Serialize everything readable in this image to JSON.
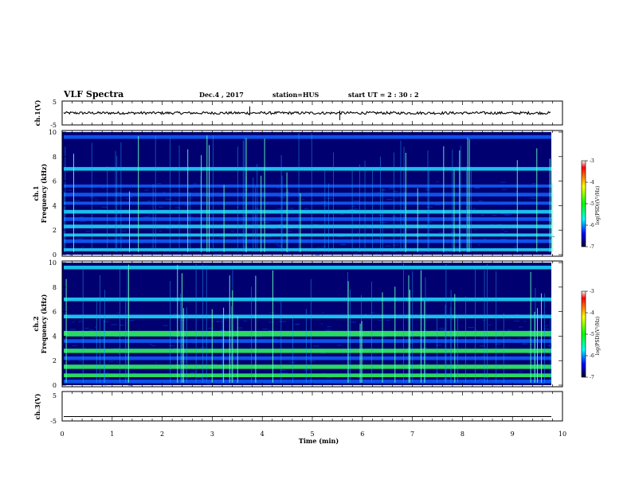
{
  "header": {
    "title": "VLF Spectra",
    "date": "Dec.4  , 2017",
    "station": "station=HUS",
    "start_ut": "start  UT  =   2  : 30 : 2"
  },
  "colors": {
    "spectrogram_bg": "#000070",
    "band_blue": "#1060ff",
    "band_cyan": "#20e0ff",
    "band_green": "#30ff60",
    "colorbar": [
      "#ff0000",
      "#ffff00",
      "#00ff00",
      "#00ffff",
      "#0000ff",
      "#000040"
    ]
  },
  "chart_data": [
    {
      "type": "line",
      "panel": "ch.1",
      "ylabel": "ch.1(V)",
      "ylim": [
        -5,
        5
      ],
      "y_ticks": [
        "5",
        "-5"
      ],
      "baseline_value": 0,
      "noise_amplitude": 0.4
    },
    {
      "type": "heatmap",
      "panel": "ch.1 spectrogram",
      "ylabel": "ch.1\nFrequency (kHz)",
      "ylabel_lines": [
        "ch.1",
        "Frequency  (kHz)"
      ],
      "ylim": [
        0,
        10
      ],
      "y_ticks": [
        "0",
        "2",
        "4",
        "6",
        "8",
        "10"
      ],
      "xlim": [
        0,
        10
      ],
      "bands_khz": [
        {
          "center": 0.4,
          "width": 0.25,
          "level": "cyan"
        },
        {
          "center": 1.1,
          "width": 0.3,
          "level": "blue"
        },
        {
          "center": 1.6,
          "width": 0.25,
          "level": "cyan"
        },
        {
          "center": 2.3,
          "width": 0.3,
          "level": "cyan"
        },
        {
          "center": 2.9,
          "width": 0.3,
          "level": "blue"
        },
        {
          "center": 3.5,
          "width": 0.3,
          "level": "cyan"
        },
        {
          "center": 4.2,
          "width": 0.25,
          "level": "blue"
        },
        {
          "center": 4.9,
          "width": 0.3,
          "level": "blue"
        },
        {
          "center": 5.6,
          "width": 0.25,
          "level": "blue"
        },
        {
          "center": 7.0,
          "width": 0.3,
          "level": "cyan"
        },
        {
          "center": 9.6,
          "width": 0.3,
          "level": "blue"
        }
      ],
      "colorbar": {
        "label": "log(PSD)(V²/Hz)",
        "ticks": [
          "-3",
          "-4",
          "-5",
          "-6",
          "-7"
        ],
        "range": [
          -7,
          -3
        ]
      }
    },
    {
      "type": "heatmap",
      "panel": "ch.2 spectrogram",
      "ylabel_lines": [
        "ch.2",
        "Frequency  (kHz)"
      ],
      "ylim": [
        0,
        10
      ],
      "y_ticks": [
        "0",
        "2",
        "4",
        "6",
        "8",
        "10"
      ],
      "xlim": [
        0,
        10
      ],
      "bands_khz": [
        {
          "center": 0.3,
          "width": 0.3,
          "level": "blue"
        },
        {
          "center": 0.8,
          "width": 0.3,
          "level": "green"
        },
        {
          "center": 1.5,
          "width": 0.35,
          "level": "green"
        },
        {
          "center": 2.2,
          "width": 0.3,
          "level": "blue"
        },
        {
          "center": 2.8,
          "width": 0.35,
          "level": "green"
        },
        {
          "center": 3.6,
          "width": 0.3,
          "level": "blue"
        },
        {
          "center": 4.2,
          "width": 0.45,
          "level": "green"
        },
        {
          "center": 5.6,
          "width": 0.3,
          "level": "cyan"
        },
        {
          "center": 7.0,
          "width": 0.3,
          "level": "cyan"
        },
        {
          "center": 9.6,
          "width": 0.3,
          "level": "cyan"
        }
      ],
      "colorbar": {
        "label": "log(PSD)(V²/Hz)",
        "ticks": [
          "-3",
          "-4",
          "-5",
          "-6",
          "-7"
        ],
        "range": [
          -7,
          -3
        ]
      }
    },
    {
      "type": "line",
      "panel": "ch.3",
      "ylabel": "ch.3(V)",
      "ylim": [
        -5,
        5
      ],
      "y_ticks": [
        "5",
        "-5"
      ],
      "baseline_value": -3.5,
      "noise_amplitude": 0
    }
  ],
  "x_axis": {
    "label": "Time  (min)",
    "ticks": [
      "0",
      "1",
      "2",
      "3",
      "4",
      "5",
      "6",
      "7",
      "8",
      "9",
      "10"
    ],
    "range": [
      0,
      10
    ]
  }
}
